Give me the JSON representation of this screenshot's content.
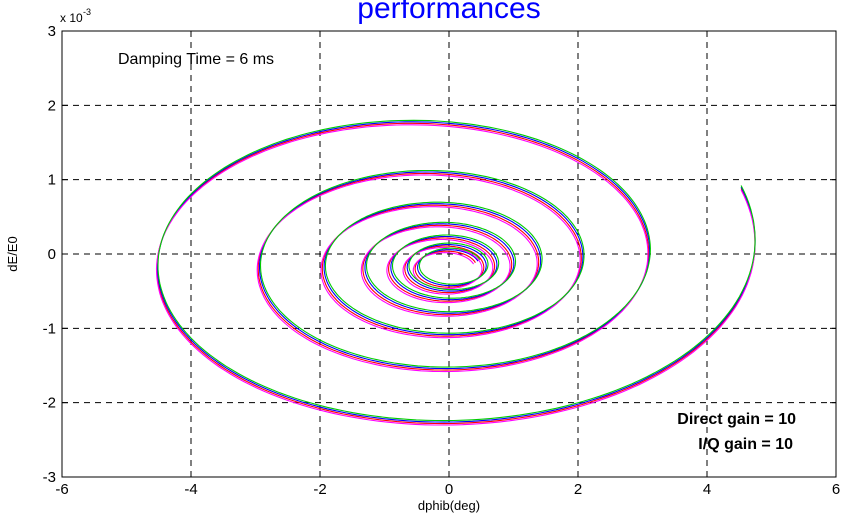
{
  "chart_data": {
    "type": "line",
    "title": "performances",
    "xlabel": "dphib(deg)",
    "ylabel": "dE/E0",
    "xlim": [
      -6,
      6
    ],
    "ylim": [
      -0.003,
      0.003
    ],
    "y_multiplier": {
      "base": "x 10",
      "exponent": "-3"
    },
    "x_ticks": [
      "-6",
      "-4",
      "-2",
      "0",
      "2",
      "4",
      "6"
    ],
    "y_ticks": [
      "-3",
      "-2",
      "-1",
      "0",
      "1",
      "2",
      "3"
    ],
    "grid": true,
    "series": [
      {
        "color": "#ff0000",
        "values": []
      },
      {
        "color": "#0000ff",
        "values": []
      },
      {
        "color": "#ff00ff",
        "values": []
      },
      {
        "color": "#00cc00",
        "values": []
      }
    ],
    "spiral": {
      "start": [
        5.15,
        -0.001
      ],
      "center": [
        0.0,
        -0.0002
      ],
      "turns": 7
    },
    "annotations": {
      "damping": "Damping Time = 6 ms",
      "direct_gain": "Direct gain = 10",
      "iq_gain": "I/Q gain = 10"
    }
  }
}
